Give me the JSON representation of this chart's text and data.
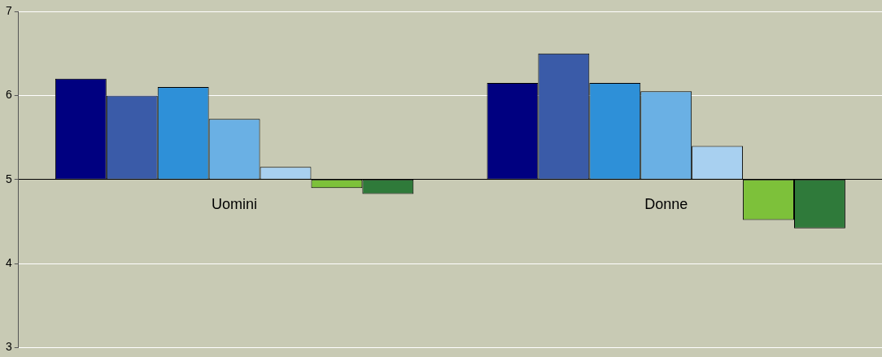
{
  "chart_data": {
    "type": "bar",
    "categories": [
      "Uomini",
      "Donne"
    ],
    "series": [
      {
        "color": "#000080",
        "base": [
          5,
          5
        ],
        "values": [
          1.2,
          1.15
        ]
      },
      {
        "color": "#3a5ba8",
        "base": [
          5,
          5
        ],
        "values": [
          1.0,
          1.5
        ]
      },
      {
        "color": "#2e90d8",
        "base": [
          5,
          5
        ],
        "values": [
          1.1,
          1.15
        ]
      },
      {
        "color": "#6ab0e4",
        "base": [
          5,
          5
        ],
        "values": [
          0.72,
          1.05
        ]
      },
      {
        "color": "#a8d0f0",
        "base": [
          5,
          5
        ],
        "values": [
          0.15,
          0.4
        ]
      },
      {
        "color": "#7dc13a",
        "base": [
          5,
          5
        ],
        "values": [
          -0.1,
          -0.48
        ]
      },
      {
        "color": "#2f7a3a",
        "base": [
          5,
          5
        ],
        "values": [
          -0.17,
          -0.58
        ]
      }
    ],
    "ylim": [
      3,
      7
    ],
    "yticks": [
      3,
      4,
      5,
      6,
      7
    ],
    "grid": "y",
    "legend": false
  }
}
